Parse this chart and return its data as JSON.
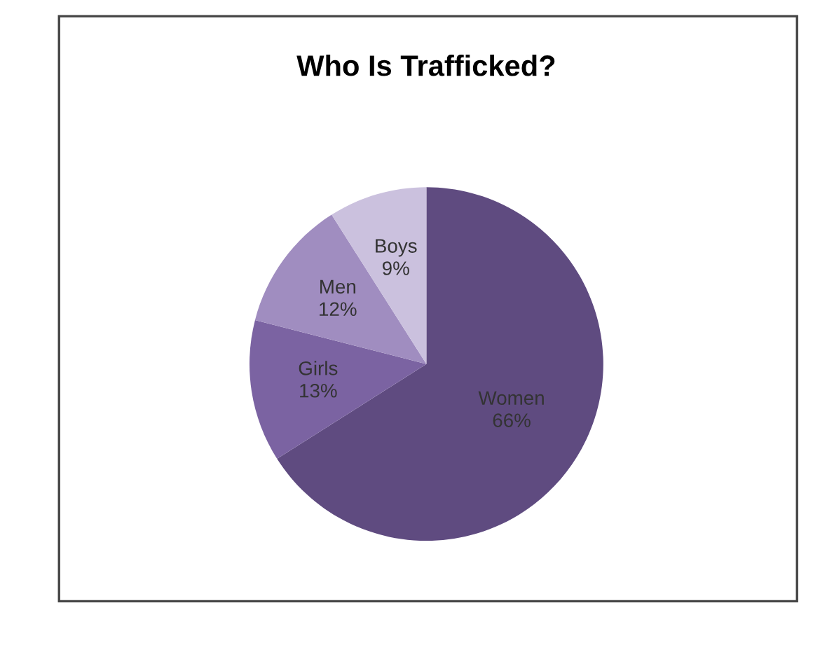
{
  "chart_data": {
    "type": "pie",
    "title": "Who Is Trafficked?",
    "categories": [
      "Women",
      "Girls",
      "Men",
      "Boys"
    ],
    "values": [
      66,
      13,
      12,
      9
    ],
    "value_labels": [
      "66%",
      "13%",
      "12%",
      "9%"
    ],
    "colors": [
      "#5f4b80",
      "#7b63a2",
      "#a08dc0",
      "#cbc1de"
    ],
    "legend": false
  }
}
